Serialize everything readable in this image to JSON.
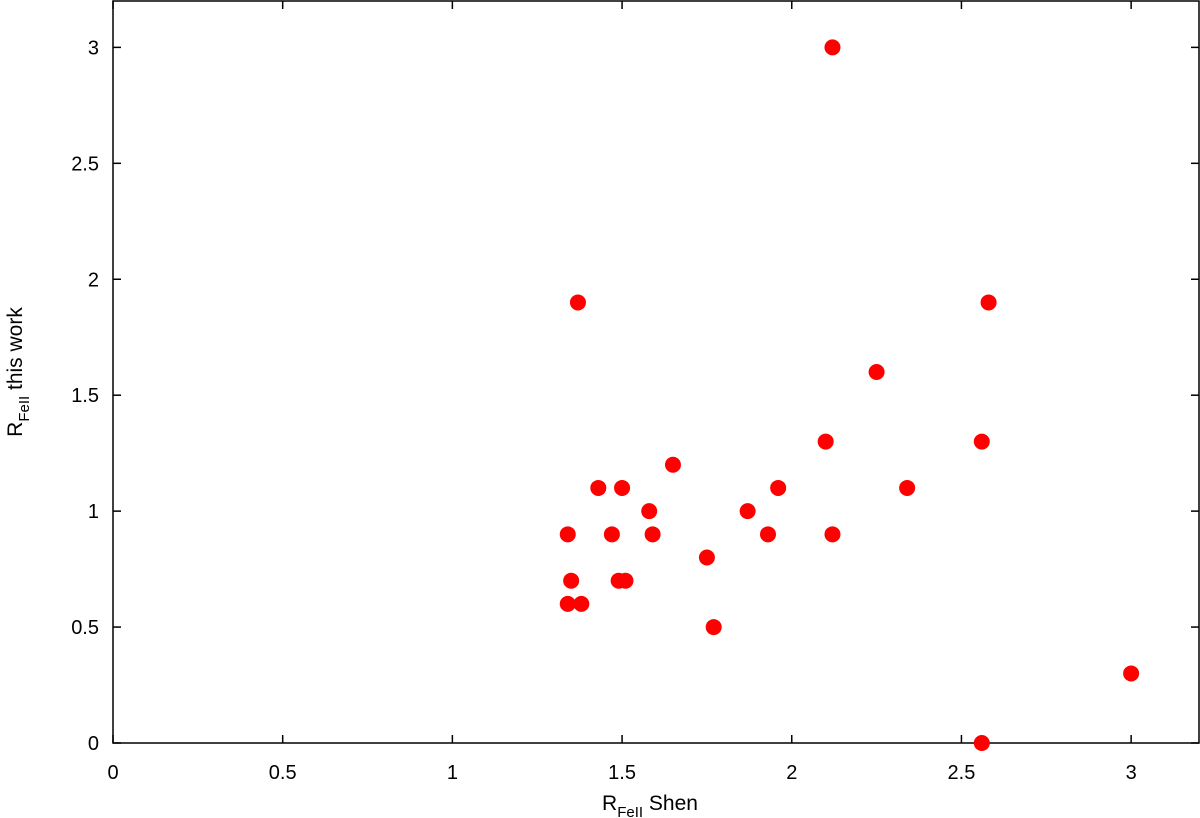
{
  "chart_data": {
    "type": "scatter",
    "xlabel": {
      "main": "R",
      "sub": "FeII",
      "rest": " Shen"
    },
    "ylabel": {
      "main": "R",
      "sub": "FeII",
      "rest": " this work"
    },
    "xlim": [
      0,
      3.2
    ],
    "ylim": [
      0,
      3.2
    ],
    "xticks": [
      0,
      0.5,
      1,
      1.5,
      2,
      2.5,
      3
    ],
    "yticks": [
      0,
      0.5,
      1,
      1.5,
      2,
      2.5,
      3
    ],
    "xtick_labels": [
      "0",
      "0.5",
      "1",
      "1.5",
      "2",
      "2.5",
      "3"
    ],
    "ytick_labels": [
      "0",
      "0.5",
      "1",
      "1.5",
      "2",
      "2.5",
      "3"
    ],
    "grid": false,
    "marker_color": "#ff0000",
    "points": [
      {
        "x": 2.12,
        "y": 3.0
      },
      {
        "x": 1.37,
        "y": 1.9
      },
      {
        "x": 2.58,
        "y": 1.9
      },
      {
        "x": 2.25,
        "y": 1.6
      },
      {
        "x": 2.1,
        "y": 1.3
      },
      {
        "x": 2.56,
        "y": 1.3
      },
      {
        "x": 1.65,
        "y": 1.2
      },
      {
        "x": 1.43,
        "y": 1.1
      },
      {
        "x": 1.5,
        "y": 1.1
      },
      {
        "x": 1.96,
        "y": 1.1
      },
      {
        "x": 2.34,
        "y": 1.1
      },
      {
        "x": 1.58,
        "y": 1.0
      },
      {
        "x": 1.87,
        "y": 1.0
      },
      {
        "x": 1.34,
        "y": 0.9
      },
      {
        "x": 1.47,
        "y": 0.9
      },
      {
        "x": 1.59,
        "y": 0.9
      },
      {
        "x": 1.93,
        "y": 0.9
      },
      {
        "x": 2.12,
        "y": 0.9
      },
      {
        "x": 1.75,
        "y": 0.8
      },
      {
        "x": 1.35,
        "y": 0.7
      },
      {
        "x": 1.49,
        "y": 0.7
      },
      {
        "x": 1.51,
        "y": 0.7
      },
      {
        "x": 1.34,
        "y": 0.6
      },
      {
        "x": 1.38,
        "y": 0.6
      },
      {
        "x": 1.77,
        "y": 0.5
      },
      {
        "x": 3.0,
        "y": 0.3
      },
      {
        "x": 2.56,
        "y": 0.0
      }
    ]
  }
}
